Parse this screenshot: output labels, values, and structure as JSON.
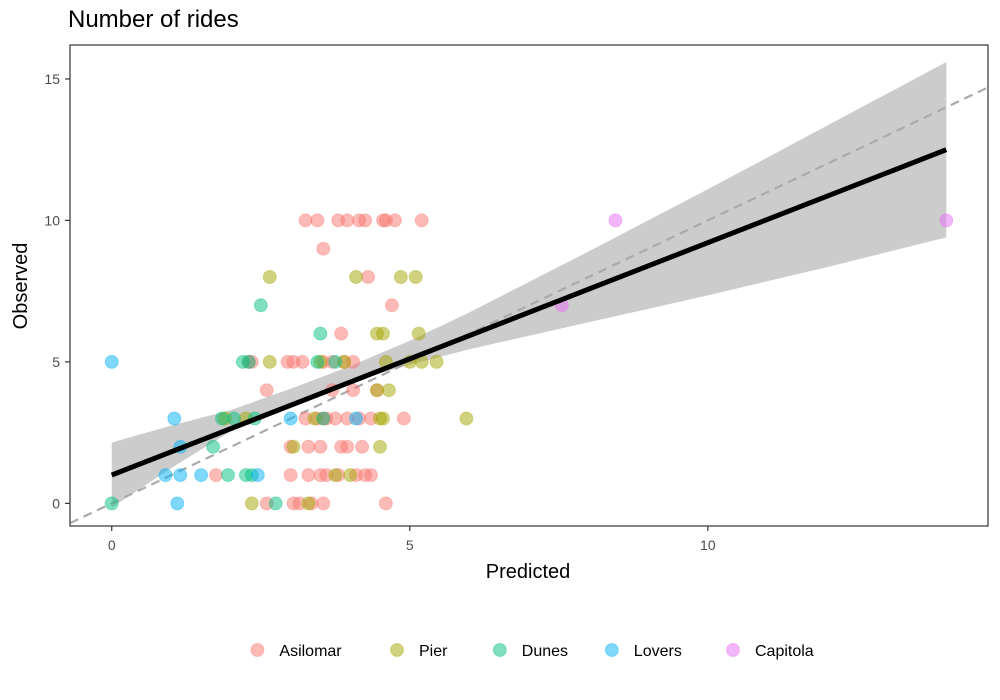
{
  "chart_data": {
    "type": "scatter",
    "title": "Number of rides",
    "xlabel": "Predicted",
    "ylabel": "Observed",
    "xlim": [
      -0.7,
      14.7
    ],
    "ylim": [
      -0.8,
      16.2
    ],
    "xticks": [
      0,
      5,
      10
    ],
    "yticks": [
      0,
      5,
      10,
      15
    ],
    "grid": false,
    "legend_position": "bottom",
    "reference_line": {
      "type": "identity",
      "style": "dashed",
      "color": "#aaaaaa"
    },
    "fit_line": {
      "x": [
        0,
        14
      ],
      "y": [
        1.0,
        12.5
      ],
      "color": "#000000"
    },
    "confidence_band": {
      "x": [
        0,
        1,
        2,
        3,
        4,
        5,
        6,
        8,
        10,
        12,
        14
      ],
      "lower": [
        -0.15,
        1.25,
        2.55,
        3.55,
        4.3,
        4.9,
        5.45,
        6.4,
        7.35,
        8.35,
        9.4
      ],
      "upper": [
        2.15,
        2.75,
        3.3,
        4.05,
        4.85,
        5.75,
        6.75,
        8.9,
        11.1,
        13.35,
        15.6
      ],
      "color": "#cccccc"
    },
    "series": [
      {
        "name": "Asilomar",
        "color": "#F8766D",
        "points": [
          [
            3.25,
            10
          ],
          [
            3.45,
            10
          ],
          [
            3.8,
            10
          ],
          [
            3.95,
            10
          ],
          [
            4.15,
            10
          ],
          [
            4.25,
            10
          ],
          [
            4.55,
            10
          ],
          [
            4.6,
            10
          ],
          [
            4.75,
            10
          ],
          [
            5.2,
            10
          ],
          [
            3.55,
            9
          ],
          [
            4.3,
            8
          ],
          [
            4.7,
            7
          ],
          [
            3.85,
            6
          ],
          [
            2.3,
            5
          ],
          [
            2.35,
            5
          ],
          [
            2.95,
            5
          ],
          [
            3.05,
            5
          ],
          [
            3.2,
            5
          ],
          [
            3.55,
            5
          ],
          [
            3.7,
            5
          ],
          [
            3.9,
            5
          ],
          [
            4.05,
            5
          ],
          [
            2.6,
            4
          ],
          [
            3.7,
            4
          ],
          [
            4.05,
            4
          ],
          [
            4.45,
            4
          ],
          [
            3.25,
            3
          ],
          [
            3.45,
            3
          ],
          [
            3.55,
            3
          ],
          [
            3.6,
            3
          ],
          [
            3.75,
            3
          ],
          [
            3.95,
            3
          ],
          [
            4.15,
            3
          ],
          [
            4.35,
            3
          ],
          [
            4.9,
            3
          ],
          [
            3.0,
            2
          ],
          [
            3.3,
            2
          ],
          [
            3.5,
            2
          ],
          [
            3.85,
            2
          ],
          [
            3.95,
            2
          ],
          [
            4.2,
            2
          ],
          [
            1.75,
            1
          ],
          [
            3.0,
            1
          ],
          [
            3.3,
            1
          ],
          [
            3.5,
            1
          ],
          [
            3.6,
            1
          ],
          [
            3.8,
            1
          ],
          [
            4.1,
            1
          ],
          [
            4.25,
            1
          ],
          [
            4.35,
            1
          ],
          [
            2.6,
            0
          ],
          [
            3.05,
            0
          ],
          [
            3.15,
            0
          ],
          [
            3.35,
            0
          ],
          [
            3.55,
            0
          ],
          [
            4.6,
            0
          ]
        ]
      },
      {
        "name": "Pier",
        "color": "#A3A500",
        "points": [
          [
            2.65,
            8
          ],
          [
            4.1,
            8
          ],
          [
            4.85,
            8
          ],
          [
            5.1,
            8
          ],
          [
            4.45,
            6
          ],
          [
            4.55,
            6
          ],
          [
            5.15,
            6
          ],
          [
            2.65,
            5
          ],
          [
            3.5,
            5
          ],
          [
            3.9,
            5
          ],
          [
            4.6,
            5
          ],
          [
            5.0,
            5
          ],
          [
            5.2,
            5
          ],
          [
            5.45,
            5
          ],
          [
            4.45,
            4
          ],
          [
            4.65,
            4
          ],
          [
            1.9,
            3
          ],
          [
            2.25,
            3
          ],
          [
            3.4,
            3
          ],
          [
            4.5,
            3
          ],
          [
            4.55,
            3
          ],
          [
            5.95,
            3
          ],
          [
            3.05,
            2
          ],
          [
            4.5,
            2
          ],
          [
            3.75,
            1
          ],
          [
            4.0,
            1
          ],
          [
            2.35,
            0
          ],
          [
            3.3,
            0
          ]
        ]
      },
      {
        "name": "Dunes",
        "color": "#00BF7D",
        "points": [
          [
            2.5,
            7
          ],
          [
            3.5,
            6
          ],
          [
            2.2,
            5
          ],
          [
            2.3,
            5
          ],
          [
            3.45,
            5
          ],
          [
            3.75,
            5
          ],
          [
            1.85,
            3
          ],
          [
            2.05,
            3
          ],
          [
            2.4,
            3
          ],
          [
            3.55,
            3
          ],
          [
            1.7,
            2
          ],
          [
            1.95,
            1
          ],
          [
            2.25,
            1
          ],
          [
            2.35,
            1
          ],
          [
            0.0,
            0
          ],
          [
            2.75,
            0
          ]
        ]
      },
      {
        "name": "Lovers",
        "color": "#00B0F6",
        "points": [
          [
            0.0,
            5
          ],
          [
            1.05,
            3
          ],
          [
            3.0,
            3
          ],
          [
            4.1,
            3
          ],
          [
            1.15,
            2
          ],
          [
            0.9,
            1
          ],
          [
            1.15,
            1
          ],
          [
            1.5,
            1
          ],
          [
            2.45,
            1
          ],
          [
            1.1,
            0
          ]
        ]
      },
      {
        "name": "Capitola",
        "color": "#E76BF3",
        "points": [
          [
            8.45,
            10
          ],
          [
            14.0,
            10
          ],
          [
            7.55,
            7
          ]
        ]
      }
    ]
  }
}
